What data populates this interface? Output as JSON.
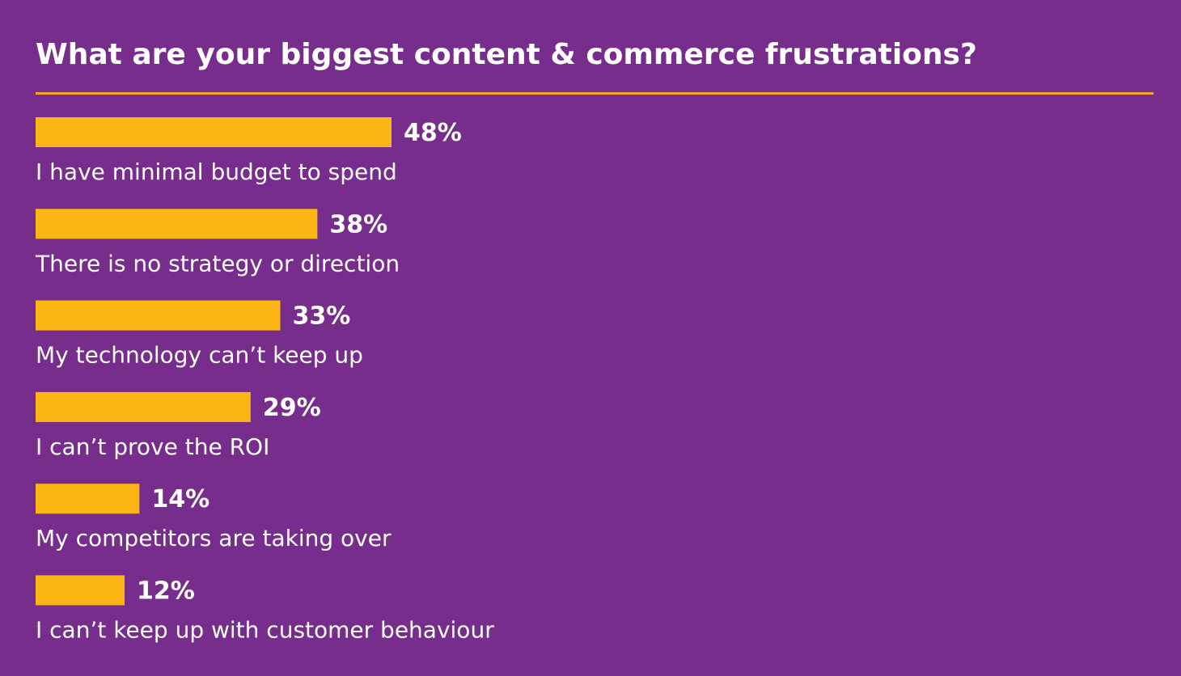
{
  "chart_data": {
    "type": "bar",
    "orientation": "horizontal",
    "title": "What are your biggest content & commerce frustrations?",
    "categories": [
      "I have minimal budget to spend",
      "There is no strategy or direction",
      "My technology can’t keep up",
      "I can’t prove the ROI",
      "My competitors are taking over",
      "I can’t keep up with customer behaviour"
    ],
    "values": [
      48,
      38,
      33,
      29,
      14,
      12
    ],
    "value_labels": [
      "48%",
      "38%",
      "33%",
      "29%",
      "14%",
      "12%"
    ],
    "color": "#fbb614"
  }
}
